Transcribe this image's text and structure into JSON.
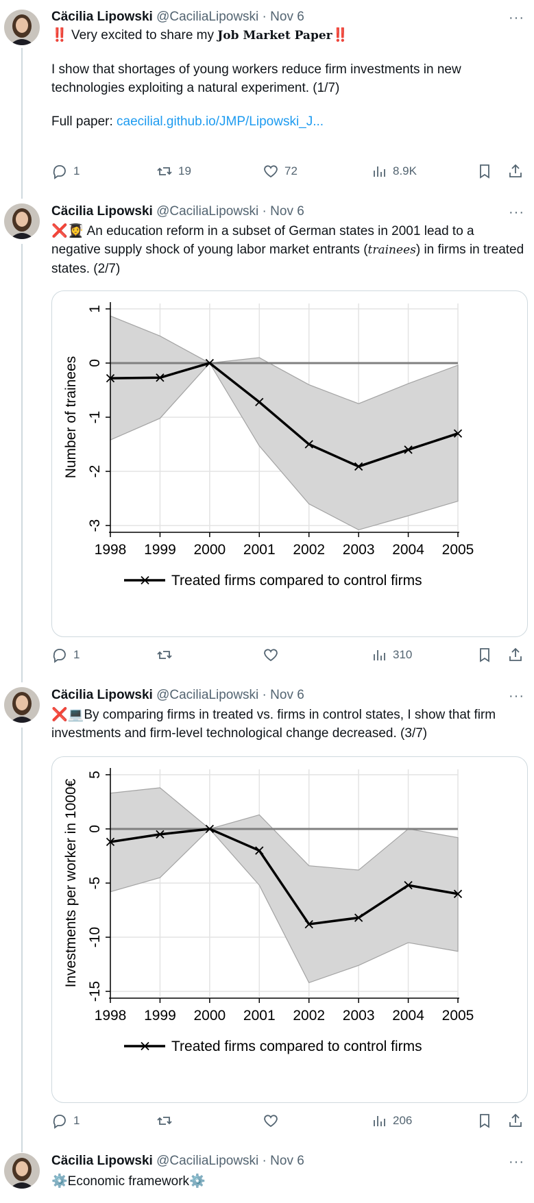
{
  "author": {
    "name": "Cäcilia Lipowski",
    "handle": "@CaciliaLipowski",
    "date": "Nov 6",
    "sep": " · "
  },
  "more_label": "···",
  "tweets": [
    {
      "line1_prefix": "‼️",
      "line1_text": " Very excited to share my ",
      "line1_bold": "Job Market Paper",
      "line1_suffix": "‼️",
      "para2": "I show that shortages of young workers reduce firm investments in new technologies exploiting a natural experiment. (1/7)",
      "para3_label": "Full paper: ",
      "para3_link": "caecilial.github.io/JMP/Lipowski_J...",
      "replies": "1",
      "reposts": "19",
      "likes": "72",
      "views": "8.9K"
    },
    {
      "emoji": "❌👩‍🎓",
      "text_a": " An education reform in a subset of German states in 2001 lead to a negative supply shock of young labor market entrants (",
      "text_italic": "trainees",
      "text_b": ") in firms in treated states. (2/7)",
      "replies": "1",
      "reposts": "",
      "likes": "",
      "views": "310"
    },
    {
      "emoji": "❌💻",
      "text": "By comparing firms in treated vs. firms in control states, I show that firm investments and firm-level technological change decreased. (3/7)",
      "replies": "1",
      "reposts": "",
      "likes": "",
      "views": "206"
    },
    {
      "emoji_left": "⚙️",
      "text": "Economic framework",
      "emoji_right": "⚙️"
    }
  ],
  "chart_data": [
    {
      "type": "line",
      "x": [
        1998,
        1999,
        2000,
        2001,
        2002,
        2003,
        2004,
        2005
      ],
      "series": [
        {
          "name": "Treated firms compared to control firms",
          "values": [
            -0.28,
            -0.27,
            0.0,
            -0.72,
            -1.5,
            -1.91,
            -1.6,
            -1.3
          ],
          "ci_upper": [
            0.87,
            0.5,
            0.0,
            0.1,
            -0.4,
            -0.75,
            -0.38,
            -0.04
          ],
          "ci_lower": [
            -1.42,
            -1.02,
            0.0,
            -1.53,
            -2.6,
            -3.08,
            -2.82,
            -2.55
          ]
        }
      ],
      "ylabel": "Number of trainees",
      "yticks": [
        "1",
        "0",
        "-1",
        "-2",
        "-3"
      ],
      "ytick_values": [
        1,
        0,
        -1,
        -2,
        -3
      ],
      "ylim": [
        -3.1,
        1.1
      ],
      "xticks": [
        "1998",
        "1999",
        "2000",
        "2001",
        "2002",
        "2003",
        "2004",
        "2005"
      ],
      "grid": true,
      "legend": "bottom"
    },
    {
      "type": "line",
      "x": [
        1998,
        1999,
        2000,
        2001,
        2002,
        2003,
        2004,
        2005
      ],
      "series": [
        {
          "name": "Treated firms compared to control firms",
          "values": [
            -1.2,
            -0.5,
            0.0,
            -2.0,
            -8.8,
            -8.2,
            -5.2,
            -6.0
          ],
          "ci_upper": [
            3.3,
            3.8,
            0.0,
            1.3,
            -3.4,
            -3.8,
            0.0,
            -0.8
          ],
          "ci_lower": [
            -5.8,
            -4.5,
            0.0,
            -5.2,
            -14.2,
            -12.6,
            -10.5,
            -11.3
          ]
        }
      ],
      "ylabel": "Investments per worker in 1000€",
      "yticks": [
        "5",
        "0",
        "-5",
        "-10",
        "-15"
      ],
      "ytick_values": [
        5,
        0,
        -5,
        -10,
        -15
      ],
      "ylim": [
        -15.5,
        5.5
      ],
      "xticks": [
        "1998",
        "1999",
        "2000",
        "2001",
        "2002",
        "2003",
        "2004",
        "2005"
      ],
      "grid": true,
      "legend": "bottom"
    }
  ]
}
